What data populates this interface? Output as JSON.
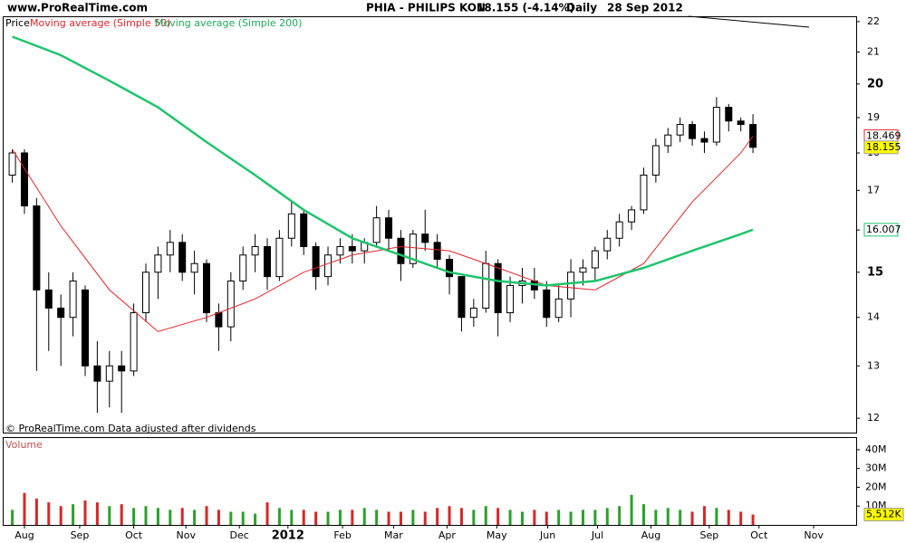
{
  "header": {
    "site": "www.ProRealTime.com",
    "title": "PHIA - PHILIPS KON",
    "quote": "18.155 (-4.14%)",
    "period": "Daily",
    "date": "28 Sep 2012"
  },
  "chart_data": {
    "type": "candlestick",
    "legend_label": "Price",
    "footer": "© ProRealTime.com  Data adjusted after dividends",
    "log_scale": true,
    "xlim": [
      -1.64,
      68.5
    ],
    "xticks": [
      {
        "value": 0,
        "label": "Aug"
      },
      {
        "value": 4.55,
        "label": "Sep"
      },
      {
        "value": 9.0,
        "label": "Oct"
      },
      {
        "value": 13.3,
        "label": "Nov"
      },
      {
        "value": 17.7,
        "label": "Dec"
      },
      {
        "value": 21.7,
        "label": "2012"
      },
      {
        "value": 26.2,
        "label": "Feb"
      },
      {
        "value": 30.4,
        "label": "Mar"
      },
      {
        "value": 34.8,
        "label": "Apr"
      },
      {
        "value": 38.9,
        "label": "May"
      },
      {
        "value": 43.1,
        "label": "Jun"
      },
      {
        "value": 47.2,
        "label": "Jul"
      },
      {
        "value": 51.6,
        "label": "Aug"
      },
      {
        "value": 56.4,
        "label": "Sep"
      },
      {
        "value": 60.5,
        "label": "Oct"
      },
      {
        "value": 65,
        "label": "Nov"
      }
    ],
    "ylim": [
      11.74,
      22.18
    ],
    "yticks": [
      12,
      13,
      14,
      15,
      16,
      17,
      18,
      19,
      20,
      21,
      22
    ],
    "up_color": "#ffffff",
    "down_color": "#000000",
    "x": [
      -1,
      0,
      1,
      2,
      3,
      4,
      5,
      6,
      7,
      8,
      9,
      10,
      11,
      12,
      13,
      14,
      15,
      16,
      17,
      18,
      19,
      20,
      21,
      22,
      23,
      24,
      25,
      26,
      27,
      28,
      29,
      30,
      31,
      32,
      33,
      34,
      35,
      36,
      37,
      38,
      39,
      40,
      41,
      42,
      43,
      44,
      45,
      46,
      47,
      48,
      49,
      50,
      51,
      52,
      53,
      54,
      55,
      56,
      57,
      58,
      59,
      60
    ],
    "open": [
      17.4,
      18.0,
      16.6,
      14.6,
      14.2,
      14.0,
      14.6,
      13.0,
      12.7,
      13.0,
      12.9,
      14.1,
      15.0,
      15.4,
      15.7,
      15.0,
      15.2,
      14.1,
      13.8,
      14.8,
      15.4,
      15.6,
      14.9,
      15.8,
      16.4,
      15.6,
      14.9,
      15.4,
      15.6,
      15.5,
      15.7,
      16.3,
      15.8,
      15.2,
      15.9,
      15.7,
      15.3,
      14.9,
      14.0,
      14.2,
      15.2,
      14.1,
      14.7,
      14.8,
      14.6,
      14.0,
      14.4,
      15.0,
      15.1,
      15.5,
      15.8,
      16.2,
      16.5,
      17.4,
      18.2,
      18.5,
      18.8,
      18.4,
      18.3,
      19.3,
      18.9,
      18.8
    ],
    "high": [
      18.1,
      18.1,
      16.8,
      15.0,
      14.5,
      15.0,
      14.7,
      13.5,
      13.3,
      13.3,
      14.3,
      15.2,
      15.6,
      16.0,
      15.9,
      15.5,
      15.3,
      14.3,
      15.0,
      15.6,
      15.9,
      15.8,
      16.0,
      16.7,
      16.5,
      15.7,
      15.6,
      15.8,
      15.9,
      15.8,
      16.6,
      16.5,
      16.0,
      16.0,
      16.5,
      15.9,
      15.4,
      14.9,
      14.4,
      15.5,
      15.3,
      14.9,
      15.1,
      15.1,
      14.8,
      14.7,
      15.3,
      15.3,
      15.6,
      16.0,
      16.4,
      16.6,
      17.6,
      18.4,
      18.7,
      19.0,
      18.9,
      18.6,
      19.6,
      19.4,
      19.0,
      19.1
    ],
    "low": [
      17.2,
      16.4,
      12.9,
      13.3,
      13.0,
      13.6,
      12.8,
      12.1,
      12.2,
      12.1,
      12.8,
      13.9,
      14.4,
      15.0,
      14.8,
      14.5,
      13.9,
      13.3,
      13.5,
      14.6,
      15.0,
      14.6,
      14.8,
      15.6,
      15.4,
      14.6,
      14.7,
      15.2,
      15.2,
      15.2,
      15.6,
      15.5,
      14.8,
      15.1,
      15.5,
      15.1,
      14.5,
      13.7,
      13.8,
      14.1,
      13.6,
      13.9,
      14.3,
      14.4,
      13.8,
      13.9,
      14.0,
      14.7,
      14.8,
      15.3,
      15.6,
      16.0,
      16.4,
      17.2,
      18.0,
      18.3,
      18.2,
      18.0,
      18.2,
      18.6,
      18.6,
      18.0
    ],
    "close": [
      18.0,
      16.6,
      14.6,
      14.2,
      14.0,
      14.8,
      13.0,
      12.7,
      13.0,
      12.9,
      14.1,
      15.0,
      15.4,
      15.7,
      15.0,
      15.2,
      14.1,
      13.8,
      14.8,
      15.4,
      15.6,
      14.9,
      15.8,
      16.4,
      15.6,
      14.9,
      15.4,
      15.6,
      15.5,
      15.7,
      16.3,
      15.8,
      15.2,
      15.9,
      15.7,
      15.3,
      14.9,
      14.0,
      14.2,
      15.2,
      14.1,
      14.7,
      14.8,
      14.6,
      14.0,
      14.4,
      15.0,
      15.1,
      15.5,
      15.8,
      16.2,
      16.5,
      17.4,
      18.2,
      18.5,
      18.8,
      18.4,
      18.3,
      19.3,
      18.9,
      18.8,
      18.155
    ],
    "series": [
      {
        "name": "Moving average (Simple 50)",
        "color": "#e0262b",
        "x": [
          -1,
          3,
          7,
          11,
          15,
          19,
          23,
          27,
          31,
          35,
          39,
          43,
          47,
          51,
          55,
          59,
          60
        ],
        "values": [
          18.1,
          16.1,
          14.6,
          13.7,
          14.0,
          14.4,
          15.0,
          15.4,
          15.6,
          15.5,
          15.1,
          14.7,
          14.6,
          15.2,
          16.7,
          18.0,
          18.469
        ]
      },
      {
        "name": "Moving average (Simple 200)",
        "color": "#1fc46c",
        "x": [
          -1,
          3,
          7,
          11,
          15,
          19,
          23,
          27,
          31,
          35,
          39,
          43,
          47,
          51,
          55,
          59,
          60
        ],
        "values": [
          21.5,
          20.9,
          20.1,
          19.3,
          18.3,
          17.4,
          16.5,
          15.8,
          15.4,
          15.0,
          14.8,
          14.7,
          14.8,
          15.1,
          15.5,
          15.9,
          16.007
        ]
      }
    ],
    "volume": {
      "type": "bar",
      "title": "Volume",
      "ylim": [
        0,
        46200000
      ],
      "yticks": [
        {
          "value": 10000000,
          "label": "10M"
        },
        {
          "value": 20000000,
          "label": "20M"
        },
        {
          "value": 30000000,
          "label": "30M"
        },
        {
          "value": 40000000,
          "label": "40M"
        }
      ],
      "up_color": "#2ca02c",
      "down_color": "#d62728",
      "values": [
        8000000,
        17000000,
        14000000,
        12000000,
        10000000,
        11000000,
        13000000,
        12000000,
        10000000,
        11000000,
        9000000,
        10000000,
        9000000,
        8000000,
        9000000,
        8000000,
        10000000,
        8000000,
        7000000,
        7000000,
        6000000,
        12000000,
        9000000,
        8000000,
        8000000,
        7000000,
        7000000,
        8000000,
        8000000,
        9000000,
        8000000,
        7000000,
        7000000,
        8000000,
        7000000,
        9000000,
        10000000,
        9000000,
        8000000,
        10000000,
        9000000,
        8000000,
        7000000,
        8000000,
        7000000,
        8000000,
        7000000,
        8000000,
        8000000,
        9000000,
        10000000,
        16000000,
        11000000,
        8000000,
        9000000,
        8000000,
        7000000,
        10000000,
        9000000,
        8000000,
        7000000,
        5512000
      ],
      "last_label": "5,512K"
    }
  }
}
